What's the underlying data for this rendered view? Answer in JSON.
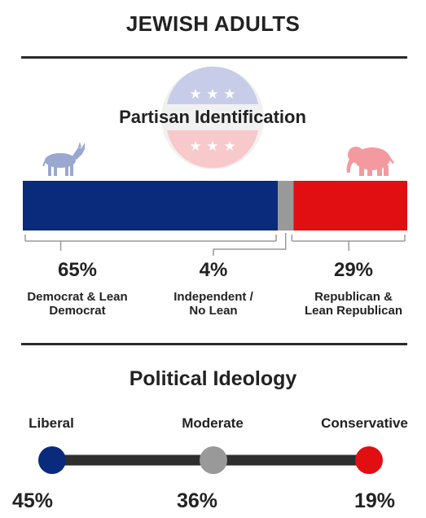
{
  "title": "JEWISH ADULTS",
  "partisan": {
    "heading": "Partisan Identification"
  },
  "ideology": {
    "heading": "Political Ideology"
  },
  "colors": {
    "democrat": "#0a2a7c",
    "independent": "#999999",
    "republican": "#e10e12",
    "track": "#2e2e2e"
  },
  "chart_data": [
    {
      "type": "bar",
      "title": "Partisan Identification",
      "orientation": "horizontal-stacked",
      "categories": [
        "Democrat & Lean Democrat",
        "Independent / No Lean",
        "Republican & Lean Republican"
      ],
      "values": [
        65,
        4,
        29
      ],
      "value_labels": [
        "65%",
        "4%",
        "29%"
      ],
      "label_lines": [
        [
          "Democrat & Lean",
          "Democrat"
        ],
        [
          "Independent /",
          "No Lean"
        ],
        [
          "Republican &",
          "Lean Republican"
        ]
      ]
    },
    {
      "type": "scatter",
      "title": "Political Ideology",
      "categories": [
        "Liberal",
        "Moderate",
        "Conservative"
      ],
      "values": [
        45,
        36,
        19
      ],
      "value_labels": [
        "45%",
        "36%",
        "19%"
      ]
    }
  ]
}
